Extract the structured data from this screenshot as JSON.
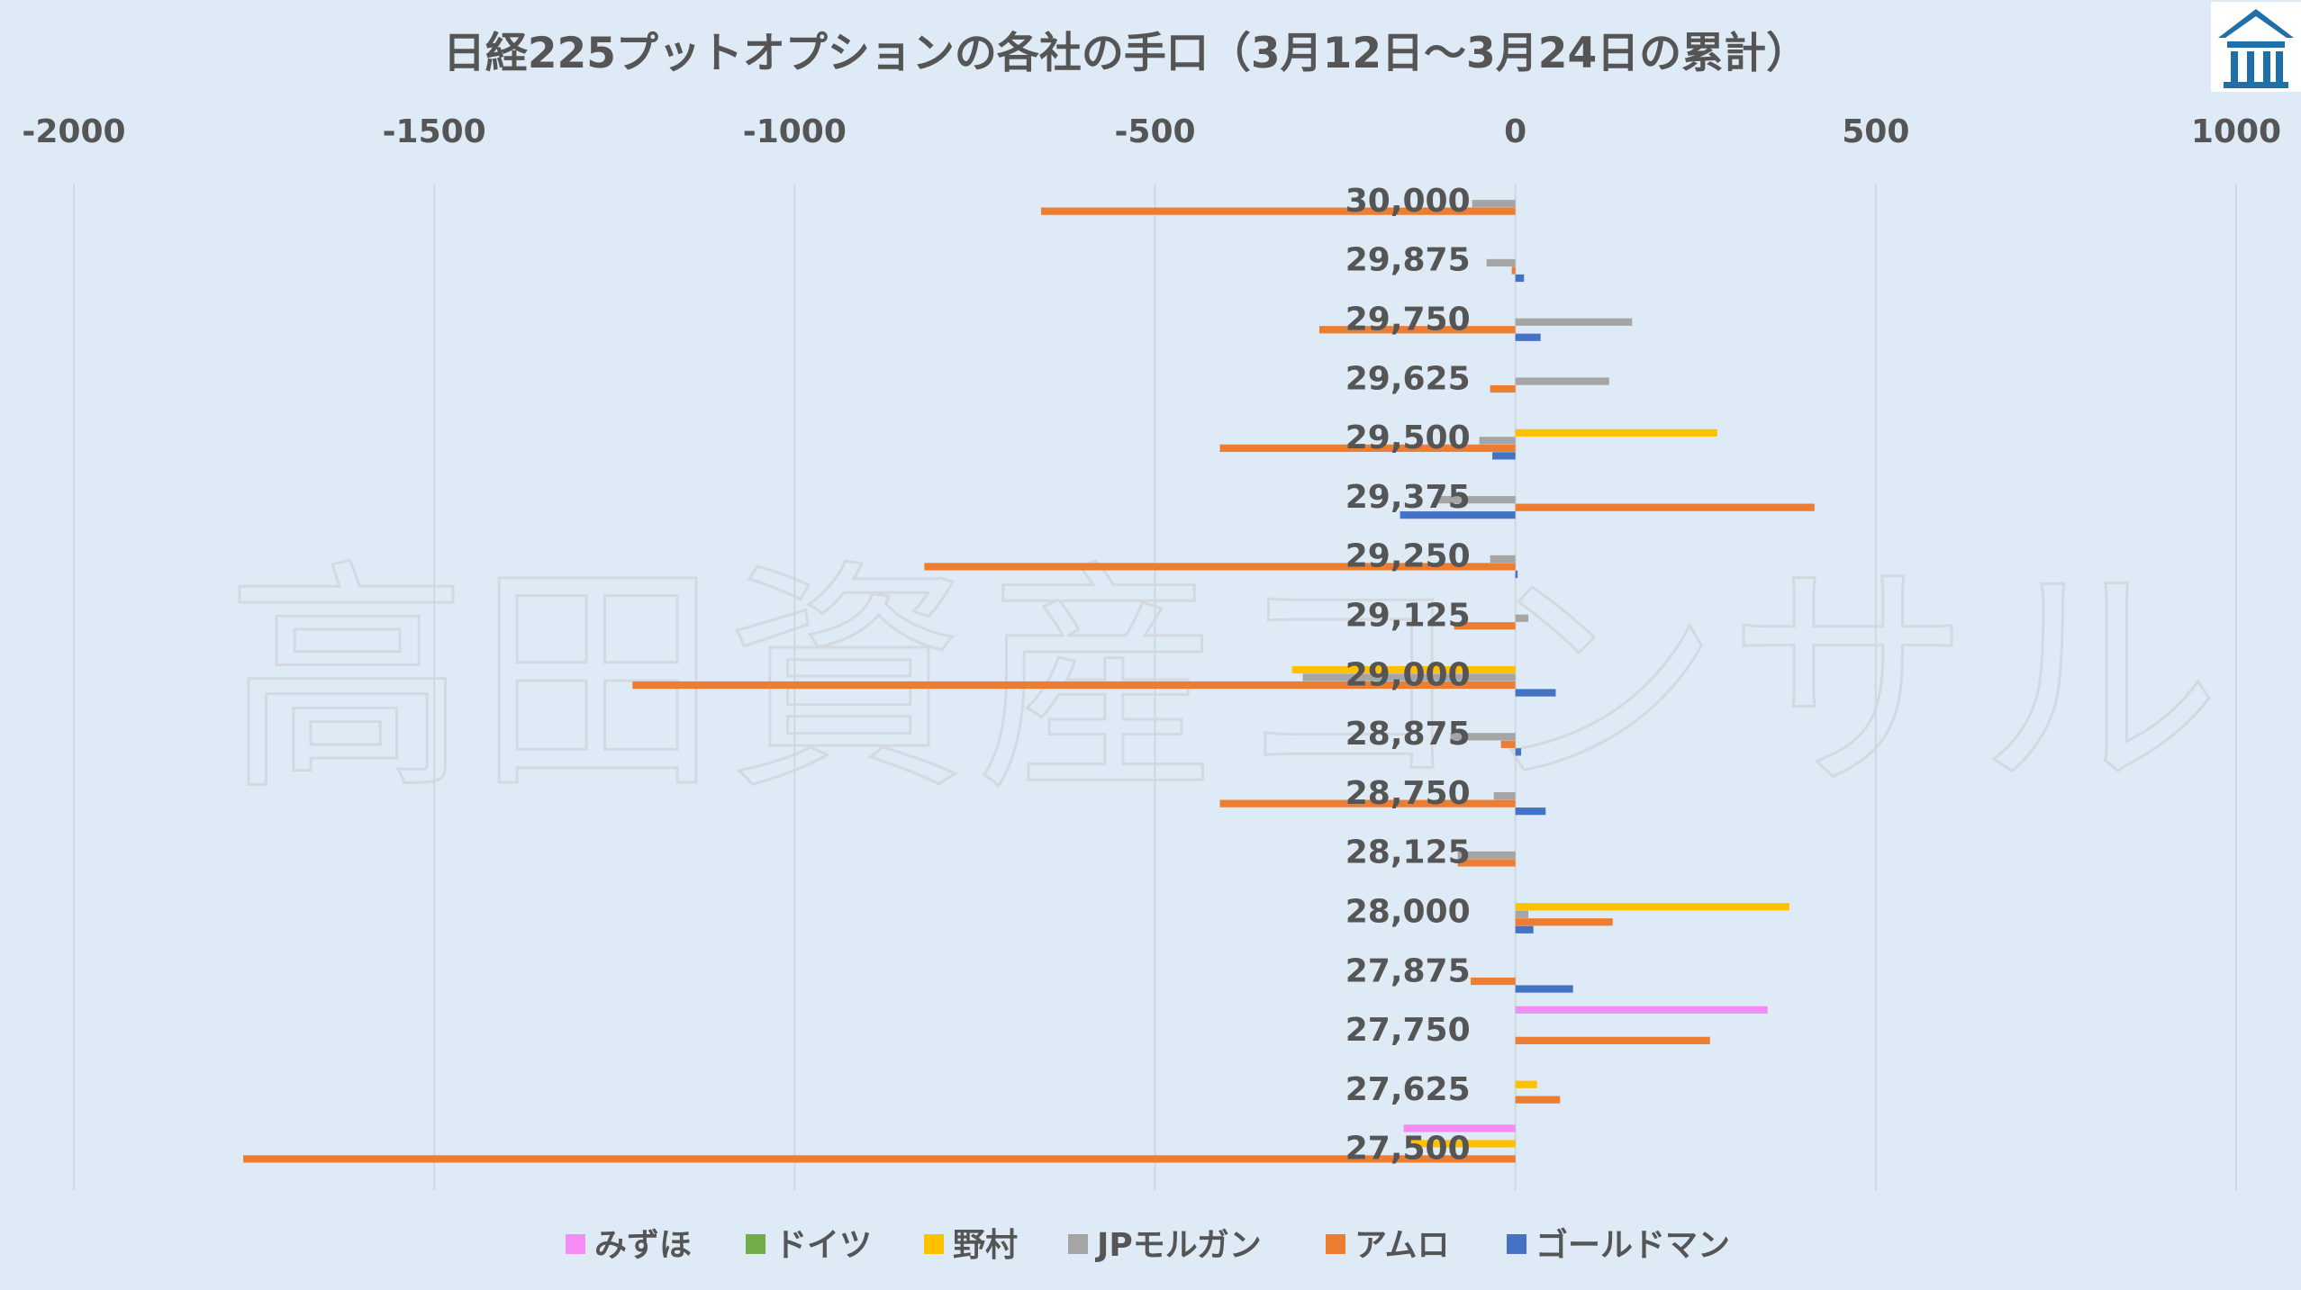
{
  "chart_data": {
    "type": "bar",
    "orientation": "horizontal",
    "title": "日経225プットオプションの各社の手口（3月12日～3月24日の累計）",
    "xlim": [
      -2000,
      1000
    ],
    "xticks": [
      -2000,
      -1500,
      -1000,
      -500,
      0,
      500,
      1000
    ],
    "x_axis_position": "top",
    "grid": true,
    "legend": "bottom",
    "categories": [
      "30,000",
      "29,875",
      "29,750",
      "29,625",
      "29,500",
      "29,375",
      "29,250",
      "29,125",
      "29,000",
      "28,875",
      "28,750",
      "28,125",
      "28,000",
      "27,875",
      "27,750",
      "27,625",
      "27,500"
    ],
    "series": [
      {
        "name": "みずほ",
        "color": "#f58cf3",
        "values": [
          0,
          0,
          0,
          0,
          0,
          0,
          0,
          0,
          0,
          0,
          0,
          0,
          0,
          0,
          350,
          0,
          -155
        ]
      },
      {
        "name": "ドイツ",
        "color": "#70ad47",
        "values": [
          0,
          0,
          0,
          0,
          0,
          0,
          0,
          0,
          0,
          0,
          0,
          0,
          0,
          0,
          0,
          0,
          0
        ]
      },
      {
        "name": "野村",
        "color": "#ffc000",
        "values": [
          0,
          0,
          0,
          0,
          280,
          0,
          0,
          0,
          -310,
          0,
          0,
          0,
          380,
          0,
          0,
          30,
          -150
        ]
      },
      {
        "name": "JPモルガン",
        "color": "#a5a5a5",
        "values": [
          -60,
          -40,
          162,
          130,
          -50,
          -110,
          -35,
          18,
          -295,
          -90,
          -30,
          -80,
          18,
          0,
          0,
          0,
          0
        ]
      },
      {
        "name": "アムロ",
        "color": "#ed7d31",
        "values": [
          -658,
          -5,
          -272,
          -35,
          -410,
          415,
          -820,
          -85,
          -1225,
          -20,
          -410,
          -80,
          135,
          -62,
          270,
          62,
          -1765
        ]
      },
      {
        "name": "ゴールドマン",
        "color": "#4472c4",
        "values": [
          0,
          12,
          35,
          0,
          -32,
          -160,
          3,
          0,
          56,
          8,
          42,
          0,
          25,
          80,
          0,
          0,
          0
        ]
      }
    ]
  },
  "watermark_text": "高田資産コンサル",
  "logo": {
    "name": "building-logo-icon",
    "color": "#1f6fa8"
  }
}
